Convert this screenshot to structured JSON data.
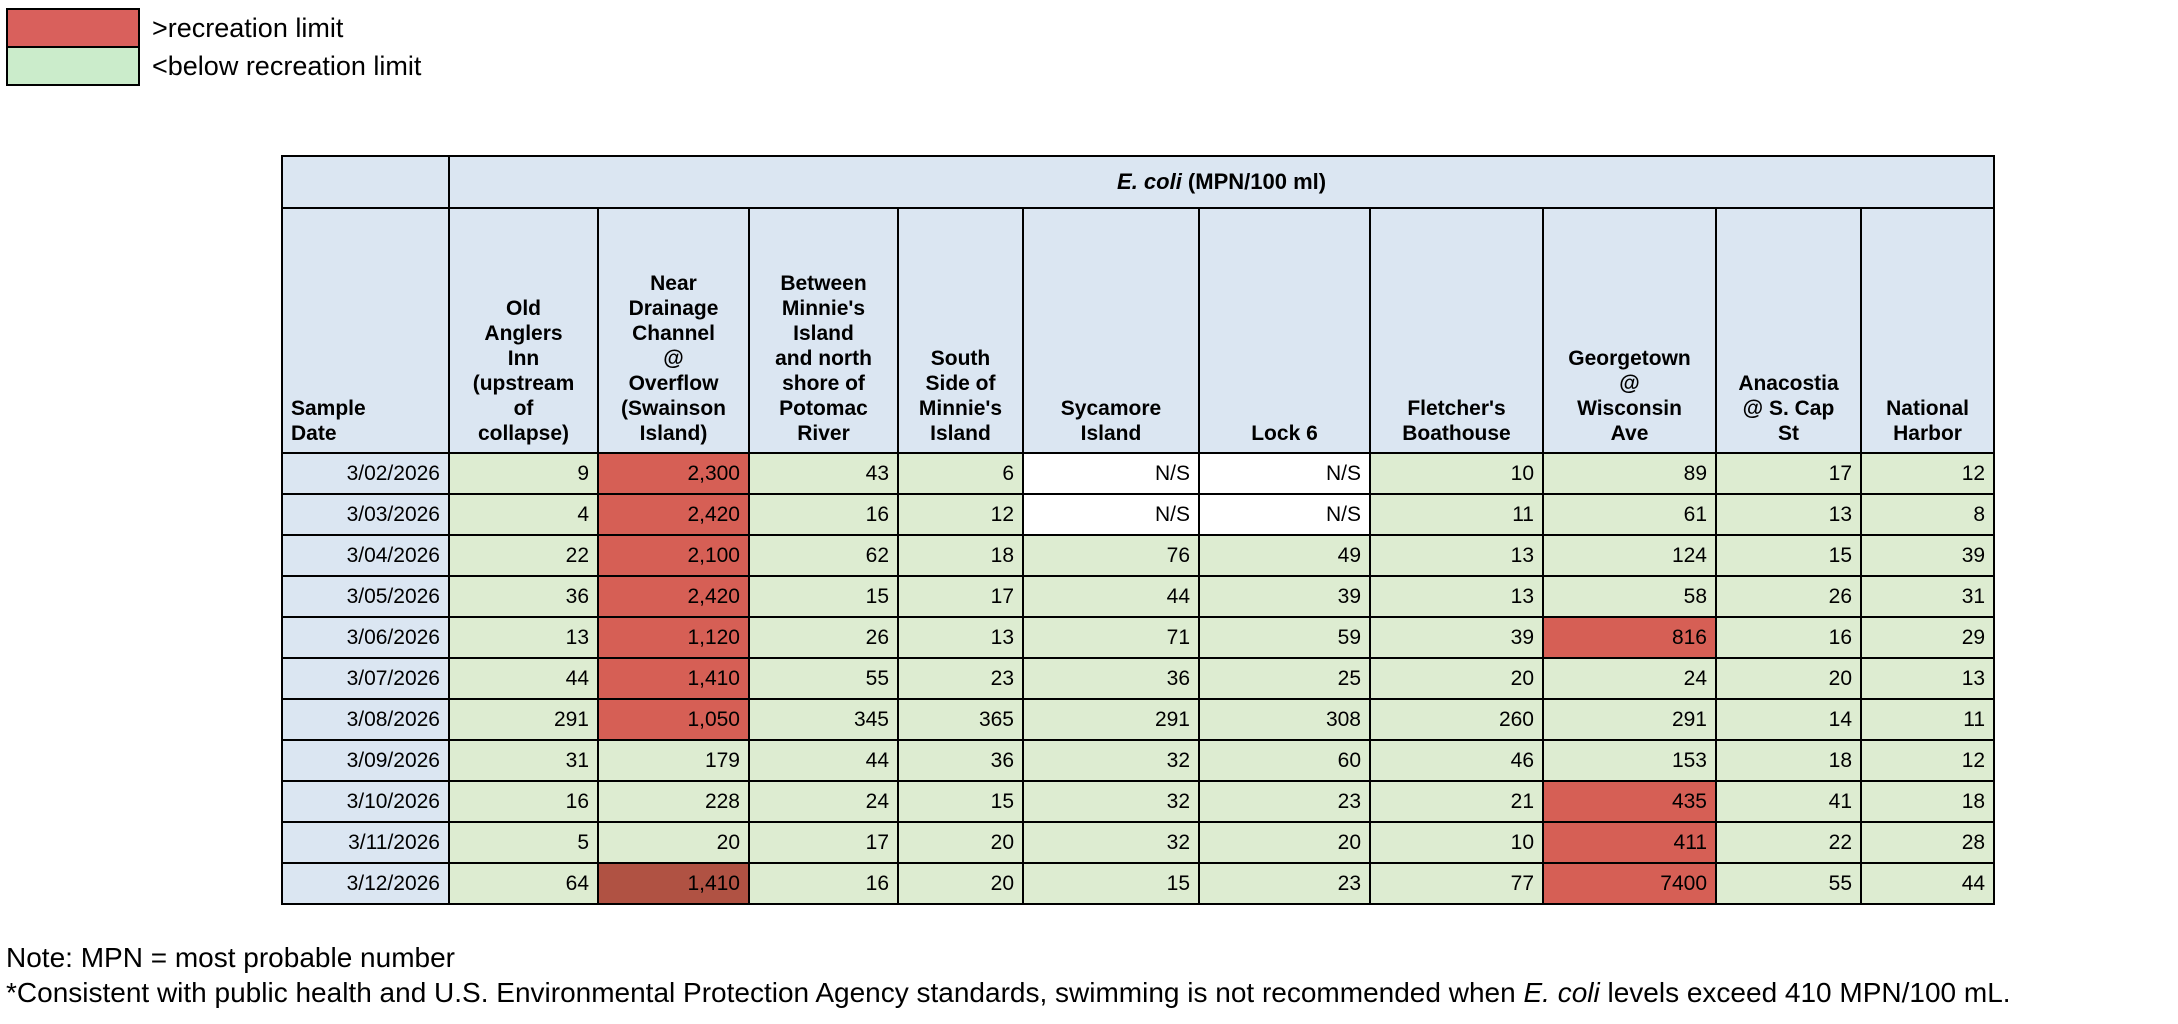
{
  "colors": {
    "header_blue": "#dbe6f2",
    "green": "#ddecd1",
    "red": "#d65f55",
    "dark_red": "#b05243",
    "legend_red": "#d9605c",
    "legend_green": "#cbeccb",
    "border": "#000000"
  },
  "legend": {
    "items": [
      {
        "key": "over_limit",
        "label": ">recreation limit",
        "color": "#d9605c"
      },
      {
        "key": "below_limit",
        "label": "<below recreation limit",
        "color": "#cbeccb"
      }
    ]
  },
  "notes": {
    "note1": "Note: MPN = most probable number",
    "note2_pre": "*Consistent with public health and U.S. Environmental Protection Agency standards, swimming is not recommended when ",
    "note2_italic": "E. coli",
    "note2_post": " levels exceed 410 MPN/100 mL."
  },
  "chart_data": {
    "type": "table",
    "title_italic": "E. coli",
    "title_rest": " (MPN/100 ml)",
    "title": "E. coli (MPN/100 ml)",
    "row_header": "Sample Date",
    "recreation_limit_mpn": 410,
    "columns": [
      "Sample Date",
      "Old Anglers Inn (upstream of collapse)",
      "Near Drainage Channel @ Overflow (Swainson Island)",
      "Between Minnie's Island and north shore of Potomac River",
      "South Side of Minnie's Island",
      "Sycamore Island",
      "Lock 6",
      "Fletcher's Boathouse",
      "Georgetown @ Wisconsin Ave",
      "Anacostia @ S. Cap St",
      "National Harbor"
    ],
    "columns_display": [
      "Sample\nDate",
      "Old\nAnglers\nInn\n(upstream\nof\ncollapse)",
      "Near\nDrainage\nChannel\n@\nOverflow\n(Swainson\nIsland)",
      "Between\nMinnie's\nIsland\nand north\nshore of\nPotomac\nRiver",
      "South\nSide of\nMinnie's\nIsland",
      "Sycamore\nIsland",
      "Lock 6",
      "Fletcher's\nBoathouse",
      "Georgetown\n@\nWisconsin\nAve",
      "Anacostia\n@ S. Cap\nSt",
      "National\nHarbor"
    ],
    "rows": [
      {
        "date": "3/02/2026",
        "values": [
          "9",
          "2,300",
          "43",
          "6",
          "N/S",
          "N/S",
          "10",
          "89",
          "17",
          "12"
        ],
        "styles": [
          "g",
          "r",
          "g",
          "g",
          "w",
          "w",
          "g",
          "g",
          "g",
          "g"
        ]
      },
      {
        "date": "3/03/2026",
        "values": [
          "4",
          "2,420",
          "16",
          "12",
          "N/S",
          "N/S",
          "11",
          "61",
          "13",
          "8"
        ],
        "styles": [
          "g",
          "r",
          "g",
          "g",
          "w",
          "w",
          "g",
          "g",
          "g",
          "g"
        ]
      },
      {
        "date": "3/04/2026",
        "values": [
          "22",
          "2,100",
          "62",
          "18",
          "76",
          "49",
          "13",
          "124",
          "15",
          "39"
        ],
        "styles": [
          "g",
          "r",
          "g",
          "g",
          "g",
          "g",
          "g",
          "g",
          "g",
          "g"
        ]
      },
      {
        "date": "3/05/2026",
        "values": [
          "36",
          "2,420",
          "15",
          "17",
          "44",
          "39",
          "13",
          "58",
          "26",
          "31"
        ],
        "styles": [
          "g",
          "r",
          "g",
          "g",
          "g",
          "g",
          "g",
          "g",
          "g",
          "g"
        ]
      },
      {
        "date": "3/06/2026",
        "values": [
          "13",
          "1,120",
          "26",
          "13",
          "71",
          "59",
          "39",
          "816",
          "16",
          "29"
        ],
        "styles": [
          "g",
          "r",
          "g",
          "g",
          "g",
          "g",
          "g",
          "r",
          "g",
          "g"
        ]
      },
      {
        "date": "3/07/2026",
        "values": [
          "44",
          "1,410",
          "55",
          "23",
          "36",
          "25",
          "20",
          "24",
          "20",
          "13"
        ],
        "styles": [
          "g",
          "r",
          "g",
          "g",
          "g",
          "g",
          "g",
          "g",
          "g",
          "g"
        ]
      },
      {
        "date": "3/08/2026",
        "values": [
          "291",
          "1,050",
          "345",
          "365",
          "291",
          "308",
          "260",
          "291",
          "14",
          "11"
        ],
        "styles": [
          "g",
          "r",
          "g",
          "g",
          "g",
          "g",
          "g",
          "g",
          "g",
          "g"
        ]
      },
      {
        "date": "3/09/2026",
        "values": [
          "31",
          "179",
          "44",
          "36",
          "32",
          "60",
          "46",
          "153",
          "18",
          "12"
        ],
        "styles": [
          "g",
          "g",
          "g",
          "g",
          "g",
          "g",
          "g",
          "g",
          "g",
          "g"
        ]
      },
      {
        "date": "3/10/2026",
        "values": [
          "16",
          "228",
          "24",
          "15",
          "32",
          "23",
          "21",
          "435",
          "41",
          "18"
        ],
        "styles": [
          "g",
          "g",
          "g",
          "g",
          "g",
          "g",
          "g",
          "r",
          "g",
          "g"
        ]
      },
      {
        "date": "3/11/2026",
        "values": [
          "5",
          "20",
          "17",
          "20",
          "32",
          "20",
          "10",
          "411",
          "22",
          "28"
        ],
        "styles": [
          "g",
          "g",
          "g",
          "g",
          "g",
          "g",
          "g",
          "r",
          "g",
          "g"
        ]
      },
      {
        "date": "3/12/2026",
        "values": [
          "64",
          "1,410",
          "16",
          "20",
          "15",
          "23",
          "77",
          "7400",
          "55",
          "44"
        ],
        "styles": [
          "g",
          "d",
          "g",
          "g",
          "g",
          "g",
          "g",
          "r",
          "g",
          "g"
        ]
      }
    ]
  }
}
